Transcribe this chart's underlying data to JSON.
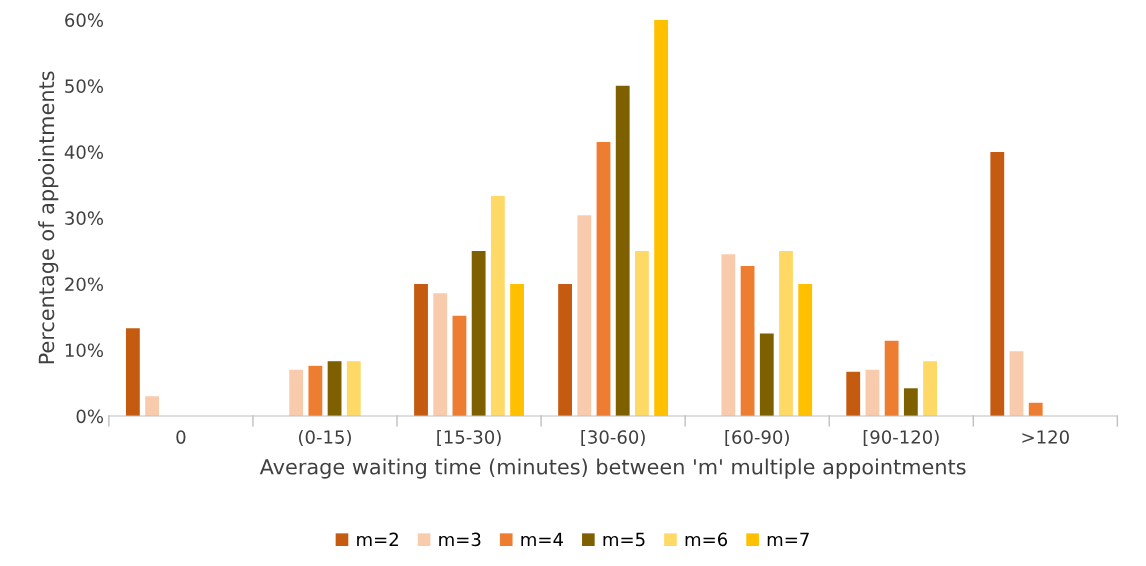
{
  "chart_data": {
    "type": "bar",
    "xlabel": "Average waiting time (minutes) between 'm' multiple appointments",
    "ylabel": "Percentage of appointments",
    "categories": [
      "0",
      "(0-15)",
      "[15-30)",
      "[30-60)",
      "[60-90)",
      "[90-120)",
      ">120"
    ],
    "series": [
      {
        "name": "m=2",
        "color": "#c55a11",
        "values": [
          13.3,
          0,
          20,
          20,
          0,
          6.7,
          40
        ]
      },
      {
        "name": "m=3",
        "color": "#f8cbad",
        "values": [
          3.0,
          7.0,
          18.6,
          30.4,
          24.5,
          7.0,
          9.8
        ]
      },
      {
        "name": "m=4",
        "color": "#ed7d31",
        "values": [
          0,
          7.6,
          15.2,
          41.5,
          22.7,
          11.4,
          2.0
        ]
      },
      {
        "name": "m=5",
        "color": "#7f6000",
        "values": [
          0,
          8.3,
          25,
          50,
          12.5,
          4.2,
          0
        ]
      },
      {
        "name": "m=6",
        "color": "#ffd966",
        "values": [
          0,
          8.3,
          33.3,
          25,
          25,
          8.3,
          0
        ]
      },
      {
        "name": "m=7",
        "color": "#ffc000",
        "values": [
          0,
          0,
          20,
          60,
          20,
          0,
          0
        ]
      }
    ],
    "ylim": [
      0,
      60
    ],
    "yticks": [
      {
        "value": 0,
        "label": "0%"
      },
      {
        "value": 10,
        "label": "10%"
      },
      {
        "value": 20,
        "label": "20%"
      },
      {
        "value": 30,
        "label": "30%"
      },
      {
        "value": 40,
        "label": "40%"
      },
      {
        "value": 50,
        "label": "50%"
      },
      {
        "value": 60,
        "label": "60%"
      }
    ],
    "grid": false,
    "legend": "bottom"
  }
}
